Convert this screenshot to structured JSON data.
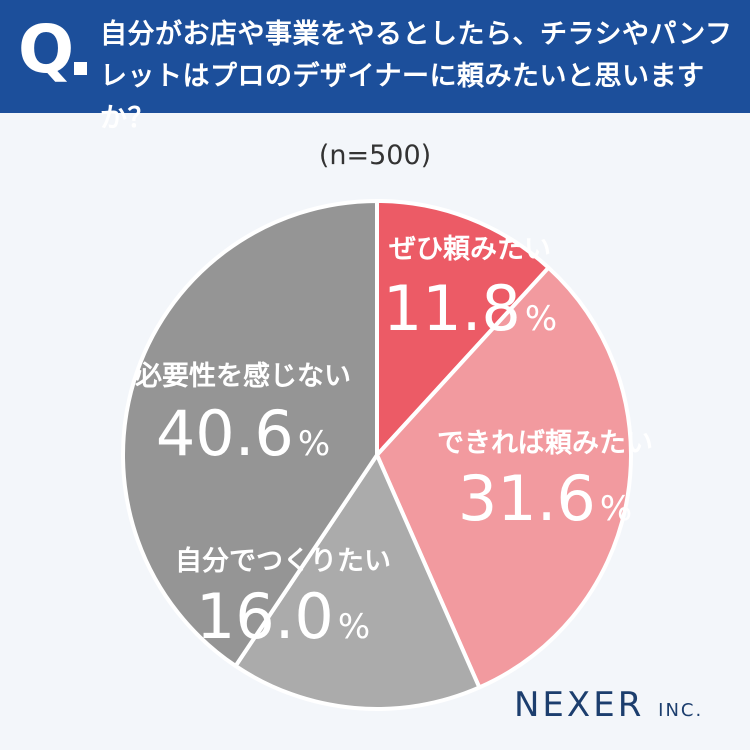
{
  "header": {
    "q_letter": "Q",
    "question": "自分がお店や事業をやるとしたら、チラシやパンフレットはプロのデザイナーに頼みたいと思いますか？"
  },
  "sample_size": "(n=500)",
  "brand": {
    "name": "NEXER",
    "suffix": "INC."
  },
  "colors": {
    "header_bg": "#1c4f9b",
    "slice_1": "#ec5b66",
    "slice_2": "#f29a9f",
    "slice_3": "#ababab",
    "slice_4": "#959595"
  },
  "chart_data": {
    "type": "pie",
    "title": "",
    "unit": "%",
    "start_angle_deg": 0,
    "direction": "clockwise",
    "categories": [
      "ぜひ頼みたい",
      "できれば頼みたい",
      "自分でつくりたい",
      "必要性を感じない"
    ],
    "values": [
      11.8,
      31.6,
      16.0,
      40.6
    ],
    "value_labels": [
      "11.8",
      "31.6",
      "16.0",
      "40.6"
    ],
    "colors": [
      "#ec5b66",
      "#f29a9f",
      "#ababab",
      "#959595"
    ]
  }
}
